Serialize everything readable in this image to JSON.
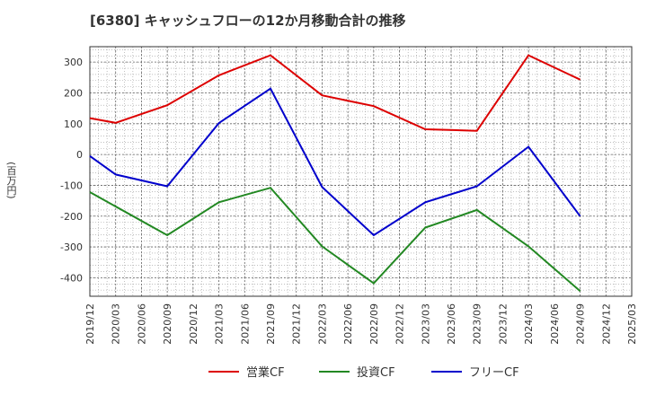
{
  "chart_data": {
    "type": "line",
    "title": "[6380]  キャッシュフローの12か月移動合計の推移",
    "ylabel": "(百万円)",
    "xlabel": "",
    "ylim": [
      -460,
      350
    ],
    "yticks": [
      300,
      200,
      100,
      0,
      -100,
      -200,
      -300,
      -400
    ],
    "x": [
      "2019/12",
      "2020/03",
      "2020/06",
      "2020/09",
      "2020/12",
      "2021/03",
      "2021/06",
      "2021/09",
      "2021/12",
      "2022/03",
      "2022/06",
      "2022/09",
      "2022/12",
      "2023/03",
      "2023/06",
      "2023/09",
      "2023/12",
      "2024/03",
      "2024/06",
      "2024/09",
      "2024/12",
      "2025/03"
    ],
    "grid": true,
    "legend_position": "bottom",
    "series": [
      {
        "name": "営業CF",
        "color": "#dd0000",
        "values": [
          118,
          103,
          null,
          160,
          null,
          257,
          null,
          322,
          null,
          192,
          null,
          157,
          null,
          82,
          null,
          77,
          null,
          322,
          null,
          243,
          null,
          null
        ]
      },
      {
        "name": "投資CF",
        "color": "#228822",
        "values": [
          -122,
          null,
          null,
          -262,
          null,
          -155,
          null,
          -108,
          null,
          -298,
          null,
          -418,
          null,
          -237,
          null,
          -180,
          null,
          -298,
          null,
          -443,
          null,
          null
        ]
      },
      {
        "name": "フリーCF",
        "color": "#0000cc",
        "values": [
          -5,
          -65,
          null,
          -103,
          null,
          102,
          null,
          214,
          null,
          -105,
          null,
          -262,
          null,
          -155,
          null,
          -103,
          null,
          25,
          null,
          -200,
          null,
          null
        ]
      }
    ]
  }
}
